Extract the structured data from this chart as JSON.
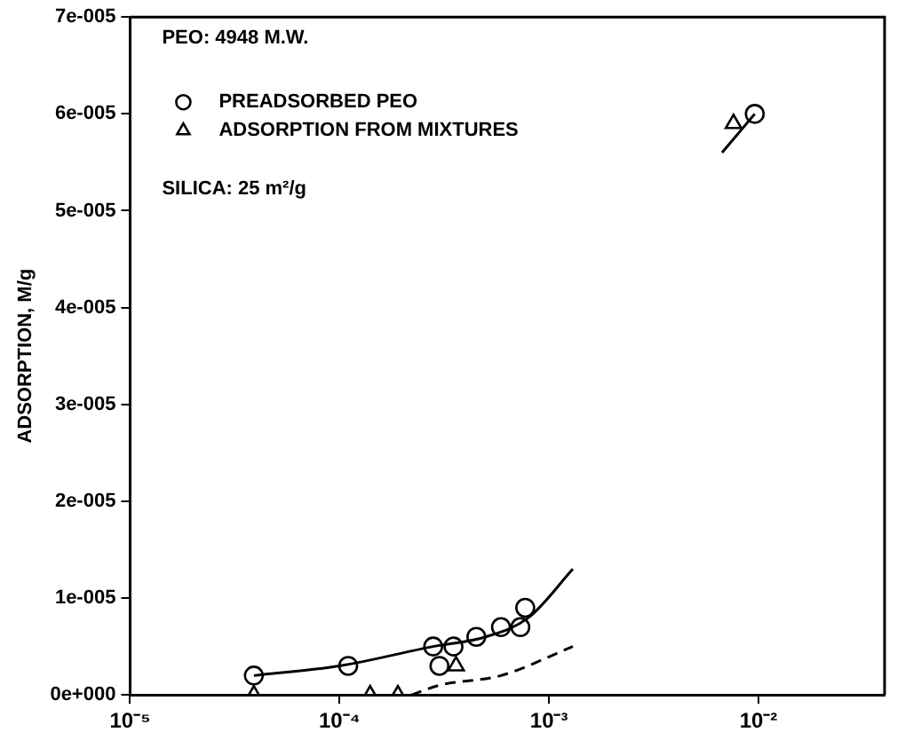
{
  "chart_data": {
    "type": "scatter",
    "ylabel": "ADSORPTION, M/g",
    "log": "x",
    "legend": "top left",
    "grid": false,
    "xlim": [
      1e-05,
      0.04
    ],
    "xticks": [
      {
        "value": 1e-05,
        "label": "10⁻⁵"
      },
      {
        "value": 0.0001,
        "label": "10⁻⁴"
      },
      {
        "value": 0.001,
        "label": "10⁻³"
      },
      {
        "value": 0.01,
        "label": "10⁻²"
      }
    ],
    "ylim": [
      0,
      7e-05
    ],
    "yticks": [
      {
        "value": 0,
        "label": "0e+000"
      },
      {
        "value": 1e-05,
        "label": "1e-005"
      },
      {
        "value": 2e-05,
        "label": "2e-005"
      },
      {
        "value": 3e-05,
        "label": "3e-005"
      },
      {
        "value": 4e-05,
        "label": "4e-005"
      },
      {
        "value": 5e-05,
        "label": "5e-005"
      },
      {
        "value": 6e-05,
        "label": "6e-005"
      },
      {
        "value": 7e-05,
        "label": "7e-005"
      }
    ],
    "annotations": [
      "PEO: 4948 M.W.",
      "SILICA: 25 m²/g"
    ],
    "series": [
      {
        "name": "PREADSORBED PEO",
        "marker": "circle",
        "color": "#000000",
        "x": [
          3.9e-05,
          0.00011,
          0.00028,
          0.0003,
          0.00035,
          0.00045,
          0.00059,
          0.00073,
          0.00077,
          0.0096
        ],
        "values": [
          2e-06,
          3e-06,
          5e-06,
          3e-06,
          5e-06,
          6e-06,
          7e-06,
          7e-06,
          9e-06,
          6e-05
        ]
      },
      {
        "name": "ADSORPTION FROM MIXTURES",
        "marker": "triangle",
        "color": "#000000",
        "x": [
          3.9e-05,
          0.00014,
          0.00019,
          0.00036,
          0.0076
        ],
        "values": [
          0,
          0,
          0,
          3e-06,
          5.9e-05
        ]
      },
      {
        "type": "line",
        "line_style": "solid",
        "marker": "none",
        "color": "#000000",
        "x": [
          3.9e-05,
          0.0001,
          0.00028,
          0.0005,
          0.0008,
          0.0013
        ],
        "values": [
          2e-06,
          3e-06,
          5e-06,
          6e-06,
          8e-06,
          1.3e-05
        ]
      },
      {
        "type": "line",
        "line_style": "dashed",
        "marker": "none",
        "color": "#000000",
        "x": [
          0.00022,
          0.0003,
          0.00059,
          0.0013
        ],
        "values": [
          0,
          1e-06,
          2e-06,
          5e-06
        ]
      },
      {
        "type": "line",
        "line_style": "solid",
        "marker": "none",
        "color": "#000000",
        "x": [
          0.0067,
          0.0096
        ],
        "values": [
          5.6e-05,
          6e-05
        ]
      }
    ]
  }
}
